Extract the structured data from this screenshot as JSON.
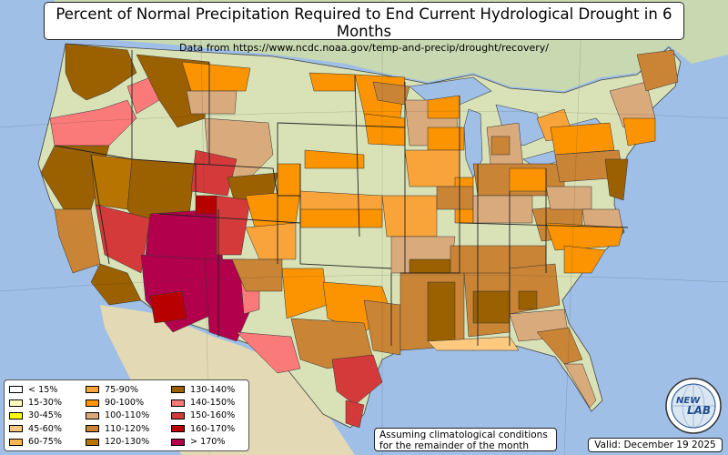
{
  "title": "Percent of Normal Precipitation Required to End Current Hydrological Drought in 6 Months",
  "subtitle": "Data from https://www.ncdc.noaa.gov/temp-and-precip/drought/recovery/",
  "legend": {
    "items": [
      {
        "label": "< 15%",
        "color": "#ffffff"
      },
      {
        "label": "15-30%",
        "color": "#ffffc0"
      },
      {
        "label": "30-45%",
        "color": "#ffff00"
      },
      {
        "label": "45-60%",
        "color": "#fcc97f"
      },
      {
        "label": "60-75%",
        "color": "#fbb652"
      },
      {
        "label": "75-90%",
        "color": "#f9a43a"
      },
      {
        "label": "90-100%",
        "color": "#fb9400"
      },
      {
        "label": "100-110%",
        "color": "#d9aa7c"
      },
      {
        "label": "110-120%",
        "color": "#c98436"
      },
      {
        "label": "120-130%",
        "color": "#b87400"
      },
      {
        "label": "130-140%",
        "color": "#9b6000"
      },
      {
        "label": "140-150%",
        "color": "#fa7a79"
      },
      {
        "label": "150-160%",
        "color": "#d53a3a"
      },
      {
        "label": "160-170%",
        "color": "#b80000"
      },
      {
        "label": "> 170%",
        "color": "#b3004d"
      }
    ]
  },
  "note": {
    "line1": "Assuming climatological conditions",
    "line2": "for the remainder of the month"
  },
  "valid": "Valid: December 19 2025",
  "logo": {
    "line1": "NEW",
    "line2": "LAB"
  },
  "colors": {
    "water": "#9fbfe6",
    "land": "#d9e2b7",
    "canada": "#c8d8b0",
    "mexico": "#e3dab5"
  }
}
